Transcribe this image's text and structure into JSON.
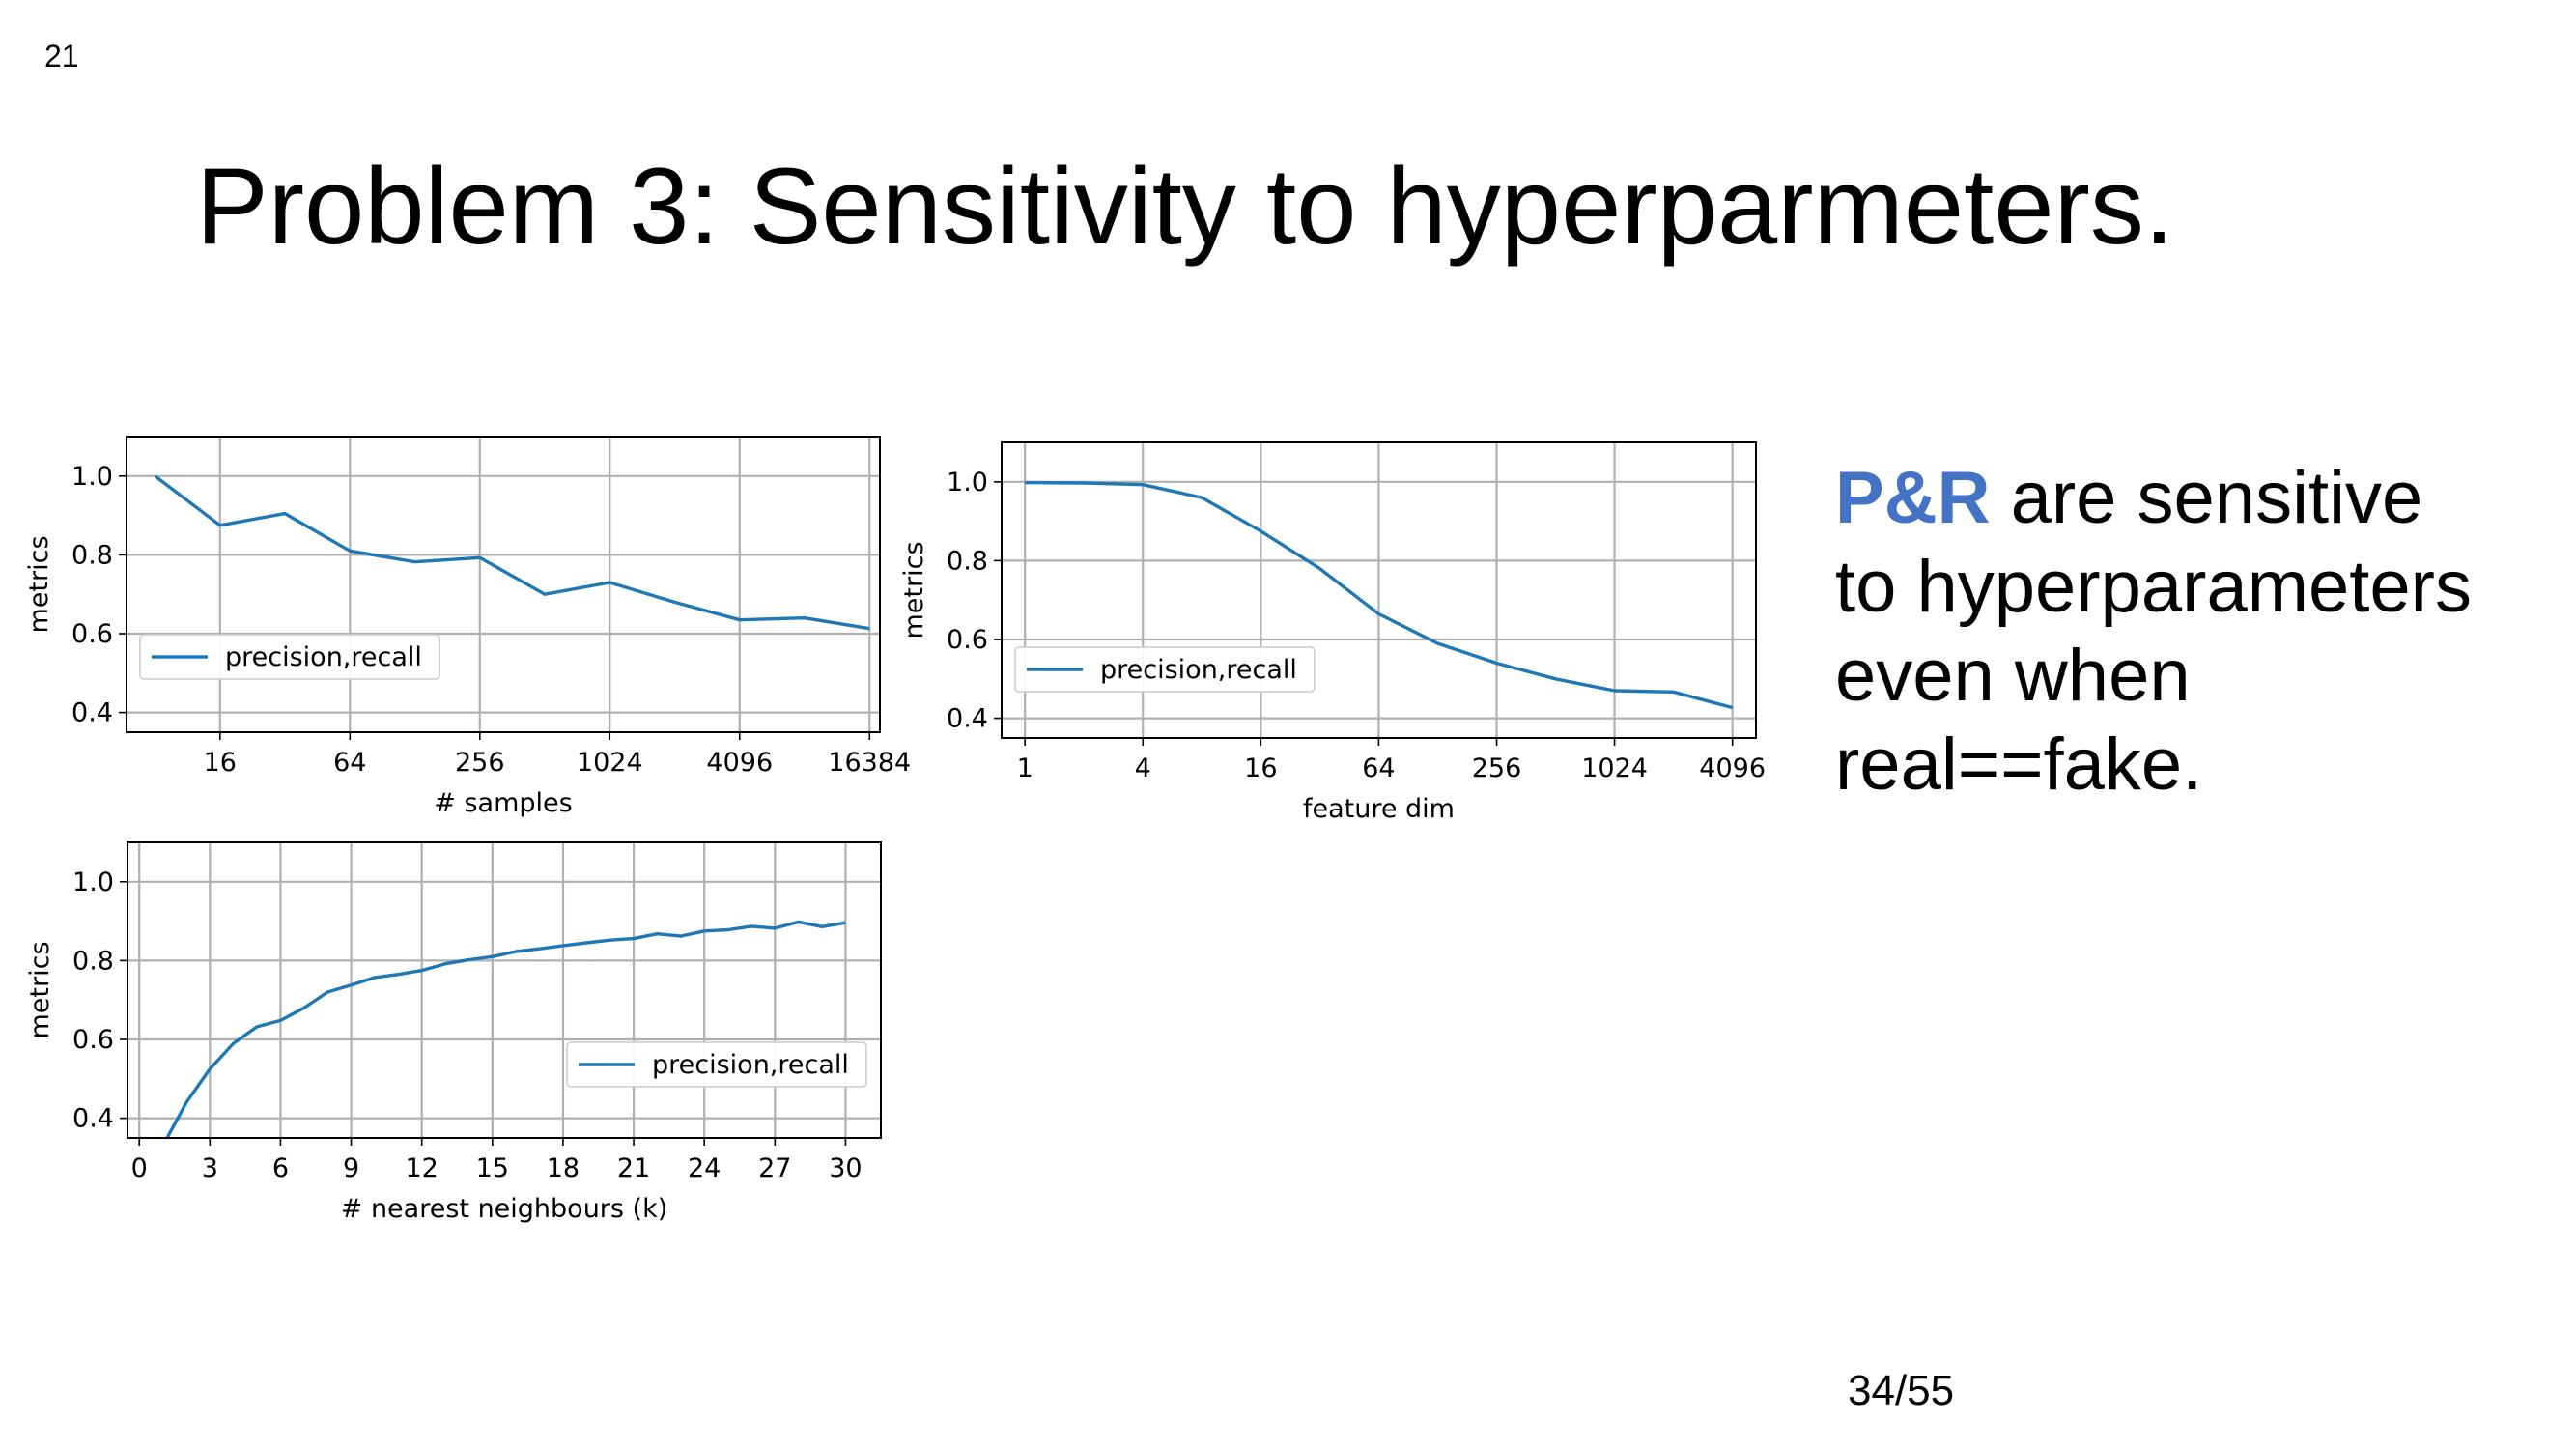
{
  "slide": {
    "number": "21",
    "title": "Problem 3: Sensitivity to hyperparmeters.",
    "side_highlight": "P&R",
    "side_rest_line1": " are sensitive",
    "side_line2": "to hyperparameters",
    "side_line3": "even when",
    "side_line4": "real==fake.",
    "page": "34/55"
  },
  "colors": {
    "line": "#1f77b4",
    "grid": "#b0b0b0",
    "highlight": "#4472c4"
  },
  "chart_data": [
    {
      "type": "line",
      "xlabel": "# samples",
      "ylabel": "metrics",
      "x_scale": "log2",
      "x": [
        8,
        16,
        32,
        64,
        128,
        256,
        512,
        1024,
        2048,
        4096,
        8192,
        16384
      ],
      "xticks": [
        16,
        64,
        256,
        1024,
        4096,
        16384
      ],
      "xtick_labels": [
        "16",
        "64",
        "256",
        "1024",
        "4096",
        "16384"
      ],
      "xlim": [
        5.9,
        18300
      ],
      "ylim": [
        0.35,
        1.1
      ],
      "yticks": [
        0.4,
        0.6,
        0.8,
        1.0
      ],
      "ytick_labels": [
        "0.4",
        "0.6",
        "0.8",
        "1.0"
      ],
      "grid": true,
      "legend_position": "center-left",
      "series": [
        {
          "name": "precision,recall",
          "values": [
            1.0,
            0.875,
            0.905,
            0.81,
            0.782,
            0.793,
            0.7,
            0.73,
            0.68,
            0.635,
            0.64,
            0.613
          ]
        }
      ]
    },
    {
      "type": "line",
      "xlabel": "feature dim",
      "ylabel": "metrics",
      "x_scale": "log2",
      "x": [
        1,
        2,
        4,
        8,
        16,
        32,
        64,
        128,
        256,
        512,
        1024,
        2048,
        4096
      ],
      "xticks": [
        1,
        4,
        16,
        64,
        256,
        1024,
        4096
      ],
      "xtick_labels": [
        "1",
        "4",
        "16",
        "64",
        "256",
        "1024",
        "4096"
      ],
      "xlim": [
        0.76,
        5400
      ],
      "ylim": [
        0.35,
        1.1
      ],
      "yticks": [
        0.4,
        0.6,
        0.8,
        1.0
      ],
      "ytick_labels": [
        "0.4",
        "0.6",
        "0.8",
        "1.0"
      ],
      "grid": true,
      "legend_position": "lower-left",
      "series": [
        {
          "name": "precision,recall",
          "values": [
            0.998,
            0.997,
            0.993,
            0.96,
            0.875,
            0.78,
            0.665,
            0.59,
            0.54,
            0.5,
            0.47,
            0.467,
            0.427
          ]
        }
      ]
    },
    {
      "type": "line",
      "xlabel": "# nearest neighbours (k)",
      "ylabel": "metrics",
      "x_scale": "linear",
      "x": [
        1,
        2,
        3,
        4,
        5,
        6,
        7,
        8,
        9,
        10,
        11,
        12,
        13,
        14,
        15,
        16,
        17,
        18,
        19,
        20,
        21,
        22,
        23,
        24,
        25,
        26,
        27,
        28,
        29,
        30
      ],
      "xticks": [
        0,
        3,
        6,
        9,
        12,
        15,
        18,
        21,
        24,
        27,
        30
      ],
      "xtick_labels": [
        "0",
        "3",
        "6",
        "9",
        "12",
        "15",
        "18",
        "21",
        "24",
        "27",
        "30"
      ],
      "xlim": [
        -0.5,
        31.5
      ],
      "ylim": [
        0.35,
        1.1
      ],
      "yticks": [
        0.4,
        0.6,
        0.8,
        1.0
      ],
      "ytick_labels": [
        "0.4",
        "0.6",
        "0.8",
        "1.0"
      ],
      "grid": true,
      "legend_position": "center-right",
      "series": [
        {
          "name": "precision,recall",
          "values": [
            0.33,
            0.44,
            0.525,
            0.59,
            0.632,
            0.648,
            0.68,
            0.72,
            0.738,
            0.757,
            0.765,
            0.775,
            0.792,
            0.802,
            0.81,
            0.823,
            0.83,
            0.838,
            0.845,
            0.852,
            0.856,
            0.868,
            0.862,
            0.875,
            0.878,
            0.887,
            0.882,
            0.898,
            0.886,
            0.896
          ]
        }
      ]
    }
  ]
}
